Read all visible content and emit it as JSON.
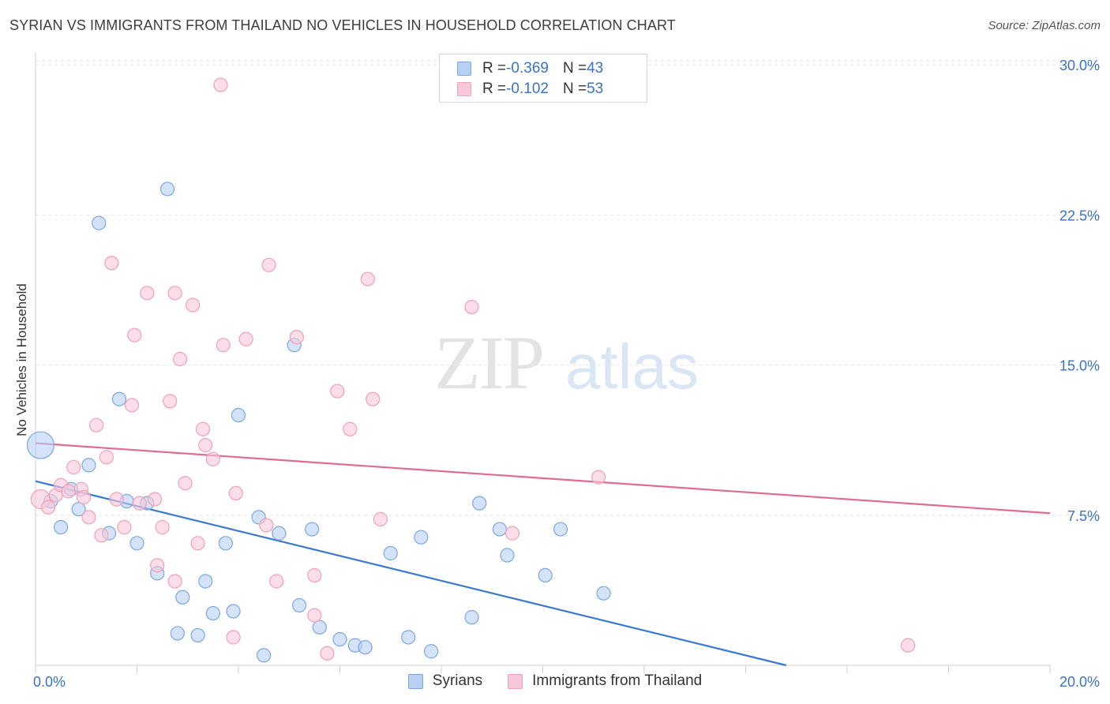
{
  "title": "SYRIAN VS IMMIGRANTS FROM THAILAND NO VEHICLES IN HOUSEHOLD CORRELATION CHART",
  "source": "Source: ZipAtlas.com",
  "watermark": {
    "zip": "ZIP",
    "atlas": "atlas"
  },
  "legend_top": [
    {
      "r_label": "R = ",
      "r_value": "-0.369",
      "n_label": "N = ",
      "n_value": "43",
      "color": "#b8d1f3"
    },
    {
      "r_label": "R = ",
      "r_value": "-0.102",
      "n_label": "N = ",
      "n_value": "53",
      "color": "#f9c8d8"
    }
  ],
  "chart_data": {
    "type": "scatter",
    "title": "SYRIAN VS IMMIGRANTS FROM THAILAND NO VEHICLES IN HOUSEHOLD CORRELATION CHART",
    "xlabel": "",
    "ylabel": "No Vehicles in Household",
    "xlim": [
      0,
      20
    ],
    "ylim": [
      0,
      30.6
    ],
    "x_tick_labels": [
      "0.0%",
      "20.0%"
    ],
    "y_ticks": [
      7.5,
      15.0,
      22.5,
      30.0
    ],
    "y_tick_labels": [
      "7.5%",
      "15.0%",
      "22.5%",
      "30.0%"
    ],
    "grid": true,
    "legend_position": "bottom",
    "series": [
      {
        "name": "Syrians",
        "color": "#7aa7e6",
        "fill": "#b8d1f3",
        "line_color": "#3a78d4",
        "trend": {
          "x": [
            0,
            14.8
          ],
          "y": [
            9.2,
            0.0
          ]
        },
        "points": [
          {
            "x": 0.1,
            "y": 11.0,
            "big": true
          },
          {
            "x": 0.3,
            "y": 8.2
          },
          {
            "x": 0.5,
            "y": 6.9
          },
          {
            "x": 0.7,
            "y": 8.8
          },
          {
            "x": 0.85,
            "y": 7.8
          },
          {
            "x": 1.05,
            "y": 10.0
          },
          {
            "x": 1.25,
            "y": 22.1
          },
          {
            "x": 1.45,
            "y": 6.6
          },
          {
            "x": 1.65,
            "y": 13.3
          },
          {
            "x": 1.8,
            "y": 8.2
          },
          {
            "x": 2.0,
            "y": 6.1
          },
          {
            "x": 2.2,
            "y": 8.1
          },
          {
            "x": 2.4,
            "y": 4.6
          },
          {
            "x": 2.6,
            "y": 23.8
          },
          {
            "x": 2.8,
            "y": 1.6
          },
          {
            "x": 2.9,
            "y": 3.4
          },
          {
            "x": 3.2,
            "y": 1.5
          },
          {
            "x": 3.35,
            "y": 4.2
          },
          {
            "x": 3.5,
            "y": 2.6
          },
          {
            "x": 3.75,
            "y": 6.1
          },
          {
            "x": 3.9,
            "y": 2.7
          },
          {
            "x": 4.0,
            "y": 12.5
          },
          {
            "x": 4.4,
            "y": 7.4
          },
          {
            "x": 4.5,
            "y": 0.5
          },
          {
            "x": 4.8,
            "y": 6.6
          },
          {
            "x": 5.2,
            "y": 3.0
          },
          {
            "x": 5.45,
            "y": 6.8
          },
          {
            "x": 5.1,
            "y": 16.0
          },
          {
            "x": 5.6,
            "y": 1.9
          },
          {
            "x": 6.0,
            "y": 1.3
          },
          {
            "x": 6.3,
            "y": 1.0
          },
          {
            "x": 6.5,
            "y": 0.9
          },
          {
            "x": 7.0,
            "y": 5.6
          },
          {
            "x": 7.35,
            "y": 1.4
          },
          {
            "x": 7.6,
            "y": 6.4
          },
          {
            "x": 7.8,
            "y": 0.7
          },
          {
            "x": 8.6,
            "y": 2.4
          },
          {
            "x": 8.75,
            "y": 8.1
          },
          {
            "x": 9.15,
            "y": 6.8
          },
          {
            "x": 9.3,
            "y": 5.5
          },
          {
            "x": 10.05,
            "y": 4.5
          },
          {
            "x": 10.35,
            "y": 6.8
          },
          {
            "x": 11.2,
            "y": 3.6
          }
        ]
      },
      {
        "name": "Immigrants from Thailand",
        "color": "#f0a0b9",
        "fill": "#f9c8d8",
        "line_color": "#e06b94",
        "trend": {
          "x": [
            0,
            20
          ],
          "y": [
            11.1,
            7.6
          ]
        },
        "points": [
          {
            "x": 0.1,
            "y": 8.3,
            "mid": true
          },
          {
            "x": 0.25,
            "y": 7.9
          },
          {
            "x": 0.4,
            "y": 8.5
          },
          {
            "x": 0.5,
            "y": 9.0
          },
          {
            "x": 0.65,
            "y": 8.7
          },
          {
            "x": 0.75,
            "y": 9.9
          },
          {
            "x": 0.9,
            "y": 8.8
          },
          {
            "x": 1.05,
            "y": 7.4
          },
          {
            "x": 1.2,
            "y": 12.0
          },
          {
            "x": 1.3,
            "y": 6.5
          },
          {
            "x": 1.4,
            "y": 10.4
          },
          {
            "x": 1.5,
            "y": 20.1
          },
          {
            "x": 1.6,
            "y": 8.3
          },
          {
            "x": 1.75,
            "y": 6.9
          },
          {
            "x": 1.9,
            "y": 13.0
          },
          {
            "x": 1.95,
            "y": 16.5
          },
          {
            "x": 2.05,
            "y": 8.1
          },
          {
            "x": 2.2,
            "y": 18.6
          },
          {
            "x": 2.35,
            "y": 8.3
          },
          {
            "x": 2.4,
            "y": 5.0
          },
          {
            "x": 2.5,
            "y": 6.9
          },
          {
            "x": 2.65,
            "y": 13.2
          },
          {
            "x": 2.75,
            "y": 4.2
          },
          {
            "x": 2.85,
            "y": 15.3
          },
          {
            "x": 2.95,
            "y": 9.1
          },
          {
            "x": 3.1,
            "y": 18.0
          },
          {
            "x": 3.2,
            "y": 6.1
          },
          {
            "x": 3.3,
            "y": 11.8
          },
          {
            "x": 3.35,
            "y": 11.0
          },
          {
            "x": 3.5,
            "y": 10.3
          },
          {
            "x": 3.7,
            "y": 16.0
          },
          {
            "x": 3.65,
            "y": 29.0
          },
          {
            "x": 3.9,
            "y": 1.4
          },
          {
            "x": 3.95,
            "y": 8.6
          },
          {
            "x": 4.15,
            "y": 16.3
          },
          {
            "x": 4.55,
            "y": 7.0
          },
          {
            "x": 4.6,
            "y": 20.0
          },
          {
            "x": 4.75,
            "y": 4.2
          },
          {
            "x": 5.15,
            "y": 16.4
          },
          {
            "x": 5.5,
            "y": 2.5
          },
          {
            "x": 5.5,
            "y": 4.5
          },
          {
            "x": 5.75,
            "y": 0.6
          },
          {
            "x": 5.95,
            "y": 13.7
          },
          {
            "x": 6.2,
            "y": 11.8
          },
          {
            "x": 6.55,
            "y": 19.3
          },
          {
            "x": 6.65,
            "y": 13.3
          },
          {
            "x": 6.8,
            "y": 7.3
          },
          {
            "x": 8.6,
            "y": 17.9
          },
          {
            "x": 9.4,
            "y": 6.6
          },
          {
            "x": 11.1,
            "y": 9.4
          },
          {
            "x": 17.2,
            "y": 1.0
          },
          {
            "x": 2.75,
            "y": 18.6
          },
          {
            "x": 0.95,
            "y": 8.4
          }
        ]
      }
    ]
  }
}
